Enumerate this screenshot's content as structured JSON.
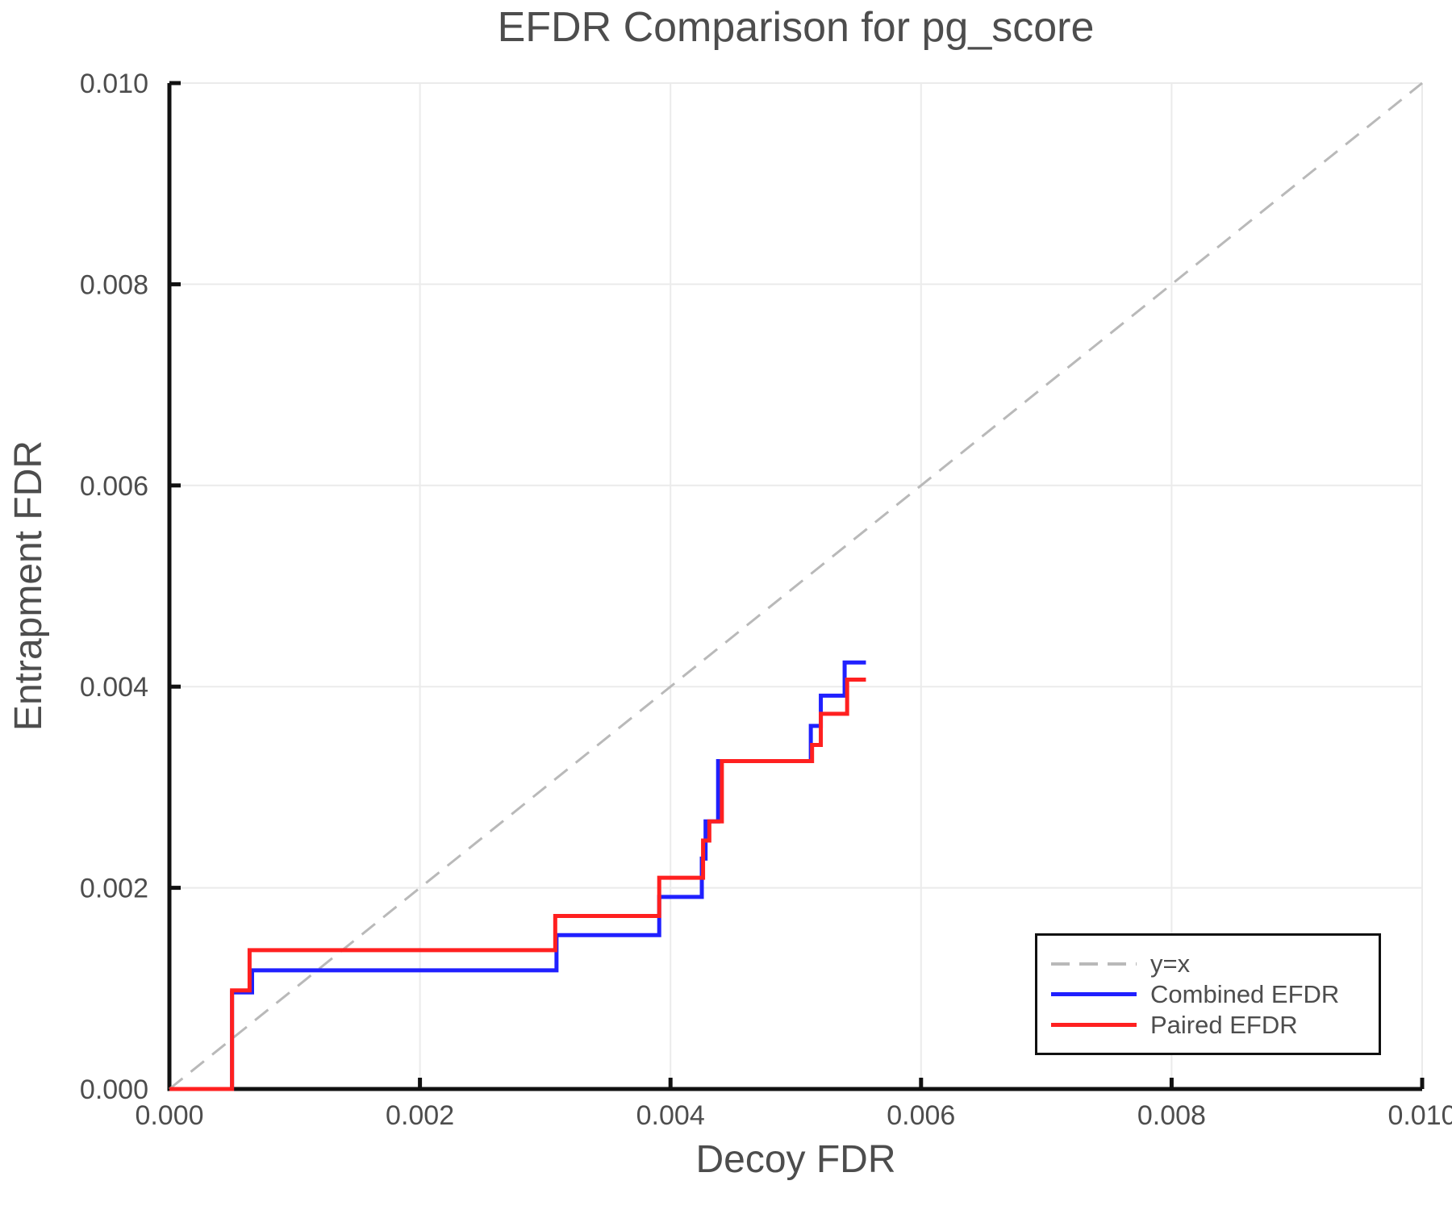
{
  "title": "EFDR Comparison for pg_score",
  "colors": {
    "background": "#ffffff",
    "text": "#4d4d4d",
    "spine": "#111111",
    "grid": "#ebebeb",
    "reference": "#b9b9b9",
    "combined": "#2020ff",
    "paired": "#ff2020"
  },
  "legend": {
    "position": "lower right",
    "entries": [
      {
        "label": "y=x",
        "color": "#b9b9b9",
        "dashed": true
      },
      {
        "label": "Combined EFDR",
        "color": "#2020ff",
        "dashed": false
      },
      {
        "label": "Paired EFDR",
        "color": "#ff2020",
        "dashed": false
      }
    ]
  },
  "chart_data": {
    "type": "line",
    "title": "EFDR Comparison for pg_score",
    "xlabel": "Decoy FDR",
    "ylabel": "Entrapment FDR",
    "xlim": [
      0.0,
      0.01
    ],
    "ylim": [
      0.0,
      0.01
    ],
    "x_ticks": [
      0.0,
      0.002,
      0.004,
      0.006,
      0.008,
      0.01
    ],
    "y_ticks": [
      0.0,
      0.002,
      0.004,
      0.006,
      0.008,
      0.01
    ],
    "x_tick_labels": [
      "0.000",
      "0.002",
      "0.004",
      "0.006",
      "0.008",
      "0.010"
    ],
    "y_tick_labels": [
      "0.000",
      "0.002",
      "0.004",
      "0.006",
      "0.008",
      "0.010"
    ],
    "grid": true,
    "legend_position": "lower right",
    "series": [
      {
        "name": "y=x",
        "style": "dashed",
        "color": "#b9b9b9",
        "width": 3,
        "points": [
          [
            0.0,
            0.0
          ],
          [
            0.01,
            0.01
          ]
        ]
      },
      {
        "name": "Combined EFDR",
        "style": "solid",
        "color": "#2020ff",
        "width": 5,
        "points": [
          [
            0.0,
            0.0
          ],
          [
            0.0005,
            0.0
          ],
          [
            0.0005,
            0.00096
          ],
          [
            0.00066,
            0.00096
          ],
          [
            0.00066,
            0.00118
          ],
          [
            0.00309,
            0.00118
          ],
          [
            0.00309,
            0.00153
          ],
          [
            0.00391,
            0.00153
          ],
          [
            0.00391,
            0.00191
          ],
          [
            0.00425,
            0.00191
          ],
          [
            0.00425,
            0.00229
          ],
          [
            0.00428,
            0.00229
          ],
          [
            0.00428,
            0.00266
          ],
          [
            0.00438,
            0.00266
          ],
          [
            0.00438,
            0.00326
          ],
          [
            0.00512,
            0.00326
          ],
          [
            0.00512,
            0.00361
          ],
          [
            0.0052,
            0.00361
          ],
          [
            0.0052,
            0.00391
          ],
          [
            0.00539,
            0.00391
          ],
          [
            0.00539,
            0.00424
          ],
          [
            0.00556,
            0.00424
          ]
        ]
      },
      {
        "name": "Paired EFDR",
        "style": "solid",
        "color": "#ff2020",
        "width": 5,
        "points": [
          [
            0.0,
            0.0
          ],
          [
            0.0005,
            0.0
          ],
          [
            0.0005,
            0.00098
          ],
          [
            0.00064,
            0.00098
          ],
          [
            0.00064,
            0.00138
          ],
          [
            0.00308,
            0.00138
          ],
          [
            0.00308,
            0.00172
          ],
          [
            0.00391,
            0.00172
          ],
          [
            0.00391,
            0.0021
          ],
          [
            0.00426,
            0.0021
          ],
          [
            0.00426,
            0.00247
          ],
          [
            0.00431,
            0.00247
          ],
          [
            0.00431,
            0.00266
          ],
          [
            0.00441,
            0.00266
          ],
          [
            0.00441,
            0.00326
          ],
          [
            0.00513,
            0.00326
          ],
          [
            0.00513,
            0.00342
          ],
          [
            0.0052,
            0.00342
          ],
          [
            0.0052,
            0.00373
          ],
          [
            0.00541,
            0.00373
          ],
          [
            0.00541,
            0.00407
          ],
          [
            0.00556,
            0.00407
          ]
        ]
      }
    ]
  }
}
